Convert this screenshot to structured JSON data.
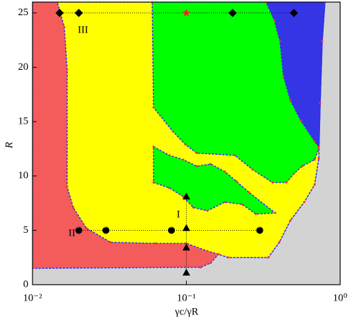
{
  "chart_data": {
    "type": "scatter",
    "x_label": "γc/γR",
    "y_label": "R",
    "xscale": "log",
    "xlim": [
      0.01,
      1
    ],
    "ylim": [
      0,
      26
    ],
    "xticks": [
      {
        "value": 0.01,
        "label": "10⁻²"
      },
      {
        "value": 0.1,
        "label": "10⁻¹"
      },
      {
        "value": 1,
        "label": "10⁰"
      }
    ],
    "yticks": [
      0,
      5,
      10,
      15,
      20,
      25
    ],
    "background": "#d3d3d3",
    "boundary_color": "#2a2aff",
    "vertex_color": "#ff3030",
    "regions": [
      {
        "color": "#f45b5b",
        "x": [
          0.01,
          0.796,
          0.764,
          0.741,
          0.726,
          0.682,
          0.584,
          0.474,
          0.402,
          0.341,
          0.187,
          0.162,
          0.144,
          0.124,
          0.01
        ],
        "y": [
          26,
          26,
          22.4,
          16.7,
          11.6,
          9.2,
          7.6,
          5.9,
          3.9,
          2.5,
          2.5,
          2.8,
          2.0,
          1.6,
          1.5
        ]
      },
      {
        "color": "#ffff00",
        "x": [
          0.0145,
          0.796,
          0.764,
          0.741,
          0.726,
          0.682,
          0.584,
          0.474,
          0.402,
          0.341,
          0.187,
          0.162,
          0.137,
          0.1,
          0.063,
          0.0322,
          0.0224,
          0.0184,
          0.0168,
          0.0168,
          0.0161
        ],
        "y": [
          26,
          26,
          22.4,
          16.7,
          11.6,
          9.2,
          7.6,
          5.9,
          3.9,
          2.5,
          2.5,
          2.8,
          3.1,
          3.8,
          3.8,
          3.9,
          5.2,
          7.1,
          9.0,
          19.8,
          23.7
        ]
      },
      {
        "color": "#00ff00",
        "x": [
          0.06,
          0.796,
          0.764,
          0.741,
          0.726,
          0.682,
          0.566,
          0.5,
          0.446,
          0.363,
          0.269,
          0.207,
          0.117,
          0.0985,
          0.0817,
          0.0612
        ],
        "y": [
          26,
          26,
          22.4,
          16.7,
          12.5,
          11.5,
          10.9,
          10.2,
          9.4,
          9.4,
          10.6,
          11.9,
          12.1,
          12.9,
          14.1,
          16.3
        ]
      },
      {
        "color": "#00ff00",
        "x": [
          0.0612,
          0.0776,
          0.0955,
          0.117,
          0.144,
          0.178,
          0.212,
          0.255,
          0.378,
          0.283,
          0.23,
          0.178,
          0.137,
          0.111,
          0.0955,
          0.0776,
          0.0612
        ],
        "y": [
          12.7,
          11.9,
          11.5,
          10.9,
          11.1,
          10.4,
          9.5,
          8.5,
          6.6,
          6.5,
          7.4,
          7.6,
          6.8,
          7.1,
          8.1,
          8.9,
          9.4
        ]
      },
      {
        "color": "#3535e6",
        "x": [
          0.33,
          0.796,
          0.764,
          0.741,
          0.726,
          0.682,
          0.555,
          0.474,
          0.428,
          0.406,
          0.374
        ],
        "y": [
          26,
          26,
          22.4,
          16.7,
          12.7,
          13.2,
          15.1,
          17.0,
          19.2,
          22.4,
          24.3
        ]
      }
    ],
    "series": [
      {
        "marker": "diamond",
        "color": "#000000",
        "linestyle": "dotted",
        "x": [
          0.015,
          0.02,
          0.2,
          0.5
        ],
        "values": [
          25,
          25,
          25,
          25
        ]
      },
      {
        "marker": "star",
        "color": "#ff2020",
        "x": [
          0.1
        ],
        "values": [
          25
        ]
      },
      {
        "marker": "circle",
        "color": "#000000",
        "linestyle": "dotted",
        "x": [
          0.02,
          0.03,
          0.08,
          0.3
        ],
        "values": [
          5,
          5,
          5,
          5
        ]
      },
      {
        "marker": "triangle",
        "color": "#000000",
        "linestyle": "dotted",
        "x": [
          0.1,
          0.1,
          0.1,
          0.1
        ],
        "values": [
          1.1,
          3.4,
          5.2,
          8.1
        ]
      }
    ],
    "annotations": [
      "III",
      "II",
      "I"
    ]
  }
}
